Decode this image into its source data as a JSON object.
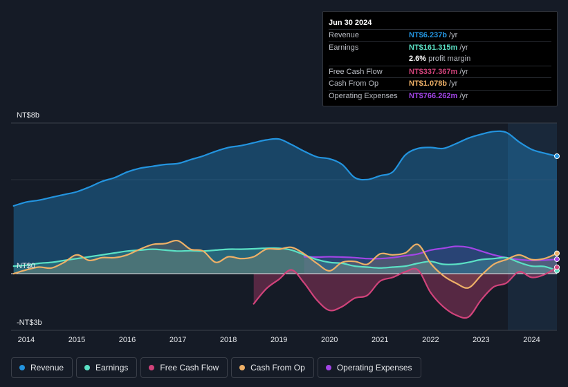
{
  "tooltip": {
    "date": "Jun 30 2024",
    "rows": [
      {
        "label": "Revenue",
        "value": "NT$6.237b",
        "unit": "/yr",
        "color": "#2394df"
      },
      {
        "label": "Earnings",
        "value": "NT$161.315m",
        "unit": "/yr",
        "color": "#5be1c5"
      },
      {
        "label": "",
        "value": "2.6%",
        "unit": "profit margin",
        "color": "#ffffff"
      },
      {
        "label": "Free Cash Flow",
        "value": "NT$337.367m",
        "unit": "/yr",
        "color": "#d1437b"
      },
      {
        "label": "Cash From Op",
        "value": "NT$1.078b",
        "unit": "/yr",
        "color": "#eeb067"
      },
      {
        "label": "Operating Expenses",
        "value": "NT$766.262m",
        "unit": "/yr",
        "color": "#a245e6"
      }
    ]
  },
  "legend": [
    {
      "label": "Revenue",
      "color": "#2394df"
    },
    {
      "label": "Earnings",
      "color": "#5be1c5"
    },
    {
      "label": "Free Cash Flow",
      "color": "#d1437b"
    },
    {
      "label": "Cash From Op",
      "color": "#eeb067"
    },
    {
      "label": "Operating Expenses",
      "color": "#a245e6"
    }
  ],
  "chart_data": {
    "type": "area",
    "unit": "NT$ billions (annualized)",
    "y_labels": [
      "NT$8b",
      "NT$0",
      "-NT$3b"
    ],
    "ylim": [
      -3,
      8
    ],
    "xlim": [
      2013.7,
      2024.5
    ],
    "x_ticks": [
      "2014",
      "2015",
      "2016",
      "2017",
      "2018",
      "2019",
      "2020",
      "2021",
      "2022",
      "2023",
      "2024"
    ],
    "forecast_region_start": 2023.5,
    "series": [
      {
        "name": "Revenue",
        "color": "#2394df",
        "x": [
          2013.75,
          2014.0,
          2014.25,
          2014.5,
          2014.75,
          2015.0,
          2015.25,
          2015.5,
          2015.75,
          2016.0,
          2016.25,
          2016.5,
          2016.75,
          2017.0,
          2017.25,
          2017.5,
          2017.75,
          2018.0,
          2018.25,
          2018.5,
          2018.75,
          2019.0,
          2019.25,
          2019.5,
          2019.75,
          2020.0,
          2020.25,
          2020.5,
          2020.75,
          2021.0,
          2021.25,
          2021.5,
          2021.75,
          2022.0,
          2022.25,
          2022.5,
          2022.75,
          2023.0,
          2023.25,
          2023.5,
          2023.75,
          2024.0,
          2024.25,
          2024.5
        ],
        "values": [
          3.6,
          3.8,
          3.9,
          4.05,
          4.2,
          4.35,
          4.6,
          4.9,
          5.1,
          5.4,
          5.6,
          5.7,
          5.8,
          5.85,
          6.05,
          6.25,
          6.5,
          6.7,
          6.8,
          6.95,
          7.1,
          7.15,
          6.85,
          6.5,
          6.2,
          6.1,
          5.8,
          5.1,
          5.0,
          5.2,
          5.4,
          6.3,
          6.65,
          6.7,
          6.65,
          6.9,
          7.2,
          7.4,
          7.55,
          7.5,
          7.0,
          6.6,
          6.4,
          6.237
        ]
      },
      {
        "name": "Earnings",
        "color": "#5be1c5",
        "x": [
          2013.75,
          2014.0,
          2014.25,
          2014.5,
          2014.75,
          2015.0,
          2015.25,
          2015.5,
          2015.75,
          2016.0,
          2016.25,
          2016.5,
          2016.75,
          2017.0,
          2017.25,
          2017.5,
          2017.75,
          2018.0,
          2018.25,
          2018.5,
          2018.75,
          2019.0,
          2019.25,
          2019.5,
          2019.75,
          2020.0,
          2020.25,
          2020.5,
          2020.75,
          2021.0,
          2021.25,
          2021.5,
          2021.75,
          2022.0,
          2022.25,
          2022.5,
          2022.75,
          2023.0,
          2023.25,
          2023.5,
          2023.75,
          2024.0,
          2024.25,
          2024.5
        ],
        "values": [
          0.4,
          0.45,
          0.55,
          0.6,
          0.7,
          0.8,
          0.9,
          1.0,
          1.1,
          1.2,
          1.25,
          1.3,
          1.25,
          1.2,
          1.22,
          1.2,
          1.25,
          1.3,
          1.3,
          1.32,
          1.35,
          1.35,
          1.25,
          1.0,
          0.75,
          0.6,
          0.55,
          0.4,
          0.35,
          0.3,
          0.35,
          0.4,
          0.55,
          0.65,
          0.5,
          0.5,
          0.6,
          0.75,
          0.8,
          0.85,
          0.6,
          0.4,
          0.38,
          0.161
        ]
      },
      {
        "name": "Free Cash Flow",
        "color": "#d1437b",
        "x": [
          2018.5,
          2018.75,
          2019.0,
          2019.25,
          2019.5,
          2019.75,
          2020.0,
          2020.25,
          2020.5,
          2020.75,
          2021.0,
          2021.25,
          2021.5,
          2021.75,
          2022.0,
          2022.25,
          2022.5,
          2022.75,
          2023.0,
          2023.25,
          2023.5,
          2023.75,
          2024.0,
          2024.25,
          2024.5
        ],
        "values": [
          -1.6,
          -0.8,
          -0.3,
          0.2,
          -0.5,
          -1.4,
          -1.95,
          -1.75,
          -1.3,
          -1.15,
          -0.4,
          -0.2,
          0.1,
          0.2,
          -1.0,
          -1.75,
          -2.2,
          -2.3,
          -1.4,
          -0.7,
          -0.5,
          0.1,
          -0.2,
          -0.05,
          0.337
        ]
      },
      {
        "name": "Cash From Op",
        "color": "#eeb067",
        "x": [
          2013.75,
          2014.0,
          2014.25,
          2014.5,
          2014.75,
          2015.0,
          2015.25,
          2015.5,
          2015.75,
          2016.0,
          2016.25,
          2016.5,
          2016.75,
          2017.0,
          2017.25,
          2017.5,
          2017.75,
          2018.0,
          2018.25,
          2018.5,
          2018.75,
          2019.0,
          2019.25,
          2019.5,
          2019.75,
          2020.0,
          2020.25,
          2020.5,
          2020.75,
          2021.0,
          2021.25,
          2021.5,
          2021.75,
          2022.0,
          2022.25,
          2022.5,
          2022.75,
          2023.0,
          2023.25,
          2023.5,
          2023.75,
          2024.0,
          2024.25,
          2024.5
        ],
        "values": [
          0.0,
          0.2,
          0.35,
          0.3,
          0.6,
          1.0,
          0.7,
          0.85,
          0.85,
          1.0,
          1.3,
          1.55,
          1.6,
          1.75,
          1.3,
          1.2,
          0.6,
          0.9,
          0.8,
          0.9,
          1.3,
          1.3,
          1.4,
          1.05,
          0.55,
          0.15,
          0.6,
          0.65,
          0.5,
          1.05,
          1.0,
          1.1,
          1.55,
          0.55,
          -0.1,
          -0.5,
          -0.75,
          -0.1,
          0.5,
          0.75,
          1.0,
          0.75,
          0.8,
          1.078
        ]
      },
      {
        "name": "Operating Expenses",
        "color": "#a245e6",
        "x": [
          2019.5,
          2019.75,
          2020.0,
          2020.25,
          2020.5,
          2020.75,
          2021.0,
          2021.25,
          2021.5,
          2021.75,
          2022.0,
          2022.25,
          2022.5,
          2022.75,
          2023.0,
          2023.25,
          2023.5,
          2023.75,
          2024.0,
          2024.25,
          2024.5
        ],
        "values": [
          0.9,
          0.88,
          0.9,
          0.88,
          0.85,
          0.8,
          0.8,
          0.85,
          0.95,
          1.05,
          1.25,
          1.35,
          1.45,
          1.4,
          1.2,
          1.0,
          0.85,
          0.75,
          0.7,
          0.72,
          0.766
        ]
      }
    ]
  }
}
